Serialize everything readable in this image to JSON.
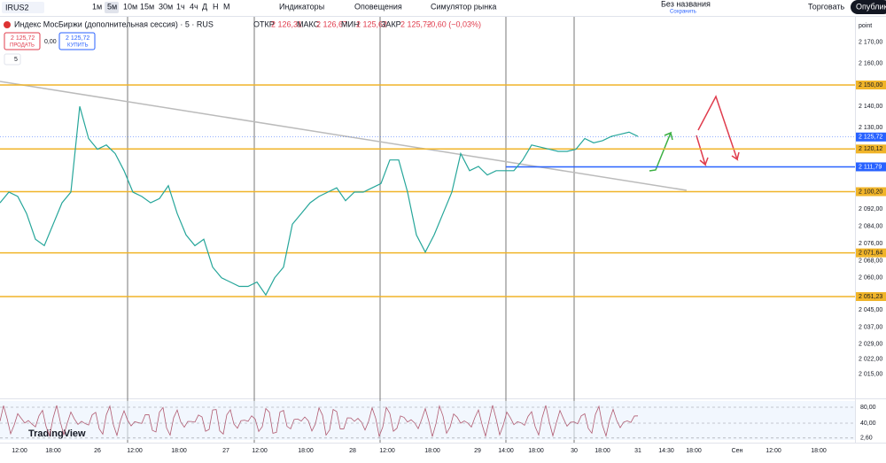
{
  "toolbar": {
    "symbol": "IRUS2",
    "intervals": [
      "1м",
      "5м",
      "10м",
      "15м",
      "30м",
      "1ч",
      "4ч",
      "Д",
      "Н",
      "М"
    ],
    "indicators": "Индикаторы",
    "alerts": "Оповещения",
    "simulator": "Симулятор рынка",
    "layout_name": "Без названия",
    "layout_status": "Сохранить",
    "trade": "Торговать",
    "publish": "Опубликовать"
  },
  "legend": {
    "title": "Индекс МосБиржи (дополнительная сессия) · 5 · RUS",
    "open_label": "ОТКР",
    "open": "2 126,31",
    "high_label": "МАКС",
    "high": "2 126,67",
    "low_label": "МИН",
    "low": "2 125,62",
    "close_label": "ЗАКР",
    "close": "2 125,72",
    "change": "−0,60 (−0,03%)",
    "sell_price": "2 125,72",
    "sell": "ПРОДАТЬ",
    "spread": "0,00",
    "buy_price": "2 125,72",
    "buy": "КУПИТЬ",
    "indicator_count": "5"
  },
  "price_axis": {
    "unit": "point",
    "ticks": [
      {
        "value": 2170,
        "label": "2 170,00"
      },
      {
        "value": 2160,
        "label": "2 160,00"
      },
      {
        "value": 2140,
        "label": "2 140,00"
      },
      {
        "value": 2130,
        "label": "2 130,00"
      },
      {
        "value": 2092,
        "label": "2 092,00"
      },
      {
        "value": 2084,
        "label": "2 084,00"
      },
      {
        "value": 2076,
        "label": "2 076,00"
      },
      {
        "value": 2068,
        "label": "2 068,00"
      },
      {
        "value": 2060,
        "label": "2 060,00"
      },
      {
        "value": 2045,
        "label": "2 045,00"
      },
      {
        "value": 2037,
        "label": "2 037,00"
      },
      {
        "value": 2029,
        "label": "2 029,00"
      },
      {
        "value": 2022,
        "label": "2 022,00"
      },
      {
        "value": 2015,
        "label": "2 015,00"
      }
    ]
  },
  "levels": [
    {
      "value": 2150,
      "label": "2 150,00"
    },
    {
      "value": 2120.12,
      "label": "2 120,12"
    },
    {
      "value": 2100.2,
      "label": "2 100,20"
    },
    {
      "value": 2071.64,
      "label": "2 071,64"
    },
    {
      "value": 2051.23,
      "label": "2 051,23"
    }
  ],
  "current_price": {
    "value": 2125.72,
    "label": "2 125,72"
  },
  "blue_line": {
    "value": 2111.79,
    "label": "2 111,79"
  },
  "price_series": [
    2095,
    2100,
    2098,
    2090,
    2078,
    2075,
    2085,
    2095,
    2100,
    2140,
    2125,
    2120,
    2122,
    2118,
    2110,
    2100,
    2098,
    2095,
    2097,
    2103,
    2090,
    2080,
    2075,
    2078,
    2065,
    2060,
    2058,
    2056,
    2056,
    2058,
    2052,
    2060,
    2065,
    2085,
    2090,
    2095,
    2098,
    2100,
    2102,
    2096,
    2100,
    2100,
    2102,
    2104,
    2115,
    2115,
    2100,
    2080,
    2072,
    2080,
    2090,
    2100,
    2118,
    2110,
    2112,
    2108,
    2110,
    2110,
    2110,
    2115,
    2122,
    2121,
    2120,
    2119,
    2119,
    2120,
    2125,
    2123,
    2124,
    2126,
    2127,
    2128,
    2126
  ],
  "oscillator_ticks": [
    {
      "value": 80,
      "label": "80,00"
    },
    {
      "value": 40,
      "label": "40,00"
    },
    {
      "value": 2.6,
      "label": "2,60"
    }
  ],
  "time_axis": [
    "12:00",
    "18:00",
    "26",
    "12:00",
    "18:00",
    "27",
    "12:00",
    "18:00",
    "28",
    "12:00",
    "18:00",
    "29",
    "14:00",
    "18:00",
    "30",
    "18:00",
    "31",
    "14:30",
    "18:00",
    "Сен",
    "12:00",
    "18:00"
  ],
  "logo": "TradingView"
}
